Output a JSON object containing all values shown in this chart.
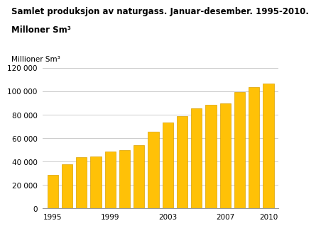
{
  "years": [
    1995,
    1996,
    1997,
    1998,
    1999,
    2000,
    2001,
    2002,
    2003,
    2004,
    2005,
    2006,
    2007,
    2008,
    2009,
    2010
  ],
  "values": [
    28500,
    38000,
    43500,
    44500,
    48500,
    50000,
    54000,
    65500,
    73500,
    79000,
    85500,
    88500,
    90000,
    99500,
    103500,
    106500
  ],
  "bar_color": "#FFC107",
  "bar_edge_color": "#DAA000",
  "title_line1": "Samlet produksjon av naturgass. Januar-desember. 1995-2010.",
  "title_line2": "Milloner Sm³",
  "ylabel_text": "Millioner Sm³",
  "ylim": [
    0,
    120000
  ],
  "yticks": [
    0,
    20000,
    40000,
    60000,
    80000,
    100000,
    120000
  ],
  "xtick_labels_shown": [
    1995,
    1999,
    2003,
    2007,
    2010
  ],
  "grid_color": "#cccccc",
  "bg_color": "#ffffff",
  "title_fontsize": 8.5,
  "ylabel_fontsize": 7.5,
  "tick_fontsize": 7.5
}
